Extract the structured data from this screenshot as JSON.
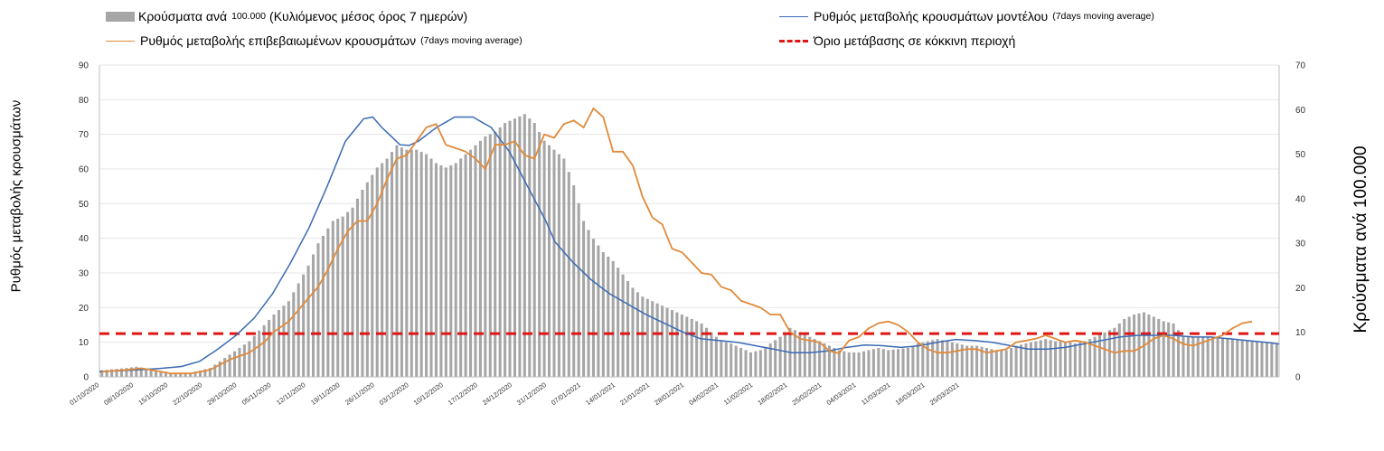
{
  "chart_data": {
    "type": "bar+line",
    "legend": {
      "bars": {
        "label": "Κρούσματα ανά",
        "small": "100.000",
        "suffix": "(Κυλιόμενος μέσος όρος 7 ημερών)"
      },
      "model": {
        "label": "Ρυθμός μεταβολής κρουσμάτων μοντέλου",
        "small": "(7days moving average)"
      },
      "confirmed": {
        "label": "Ρυθμός μεταβολής επιβεβαιωμένων κρουσμάτων",
        "small": "(7days moving average)"
      },
      "threshold": {
        "label": "Όριο μετάβασης σε κόκκινη περιοχή"
      }
    },
    "left_axis": {
      "title": "Ρυθμός μεταβολής κρουσμάτων",
      "min": 0,
      "max": 90,
      "ticks": [
        0,
        10,
        20,
        30,
        40,
        50,
        60,
        70,
        80,
        90
      ]
    },
    "right_axis": {
      "title": "Κρούσματα ανά 100.000",
      "min": 0,
      "max": 70,
      "ticks": [
        0,
        10,
        20,
        30,
        40,
        50,
        60,
        70
      ]
    },
    "x_tick_labels": [
      "01/10/2020",
      "08/10/2020",
      "15/10/2020",
      "22/10/2020",
      "29/10/2020",
      "05/11/2020",
      "12/11/2020",
      "19/11/2020",
      "26/11/2020",
      "03/12/2020",
      "10/12/2020",
      "17/12/2020",
      "24/12/2020",
      "31/12/2020",
      "07/01/2021",
      "14/01/2021",
      "21/01/2021",
      "28/01/2021",
      "04/02/2021",
      "11/02/2021",
      "18/02/2021",
      "25/02/2021",
      "04/03/2021",
      "11/03/2021",
      "18/03/2021",
      "25/03/2021"
    ],
    "threshold_value_left": 12.5,
    "bars_anchors": [
      [
        0,
        1.5
      ],
      [
        5,
        2
      ],
      [
        7,
        2.3
      ],
      [
        10,
        1.5
      ],
      [
        14,
        0.8
      ],
      [
        18,
        0.9
      ],
      [
        22,
        2
      ],
      [
        26,
        5
      ],
      [
        30,
        8
      ],
      [
        35,
        14
      ],
      [
        38,
        17
      ],
      [
        40,
        21
      ],
      [
        42,
        25
      ],
      [
        44,
        30
      ],
      [
        47,
        35
      ],
      [
        49,
        36
      ],
      [
        51,
        38
      ],
      [
        53,
        42
      ],
      [
        56,
        47
      ],
      [
        58,
        49
      ],
      [
        60,
        52
      ],
      [
        62,
        51
      ],
      [
        64,
        51
      ],
      [
        66,
        50
      ],
      [
        68,
        48
      ],
      [
        70,
        47
      ],
      [
        72,
        48
      ],
      [
        74,
        50
      ],
      [
        76,
        52
      ],
      [
        78,
        54
      ],
      [
        80,
        55
      ],
      [
        82,
        57
      ],
      [
        84,
        58
      ],
      [
        86,
        59
      ],
      [
        88,
        57
      ],
      [
        90,
        53
      ],
      [
        92,
        51
      ],
      [
        94,
        49
      ],
      [
        96,
        43
      ],
      [
        98,
        35
      ],
      [
        100,
        31
      ],
      [
        102,
        28
      ],
      [
        104,
        26
      ],
      [
        106,
        23
      ],
      [
        108,
        20
      ],
      [
        110,
        18
      ],
      [
        112,
        17
      ],
      [
        114,
        16
      ],
      [
        116,
        15
      ],
      [
        118,
        14
      ],
      [
        120,
        13
      ],
      [
        122,
        12
      ],
      [
        124,
        10
      ],
      [
        126,
        8
      ],
      [
        128,
        7.5
      ],
      [
        130,
        6.5
      ],
      [
        132,
        5.5
      ],
      [
        134,
        6
      ],
      [
        136,
        7.5
      ],
      [
        138,
        9
      ],
      [
        140,
        11
      ],
      [
        142,
        10
      ],
      [
        144,
        9
      ],
      [
        146,
        8
      ],
      [
        148,
        7
      ],
      [
        150,
        6
      ],
      [
        152,
        5.5
      ],
      [
        154,
        5.5
      ],
      [
        156,
        6
      ],
      [
        158,
        6.5
      ],
      [
        160,
        6
      ],
      [
        164,
        6.5
      ],
      [
        166,
        7.5
      ],
      [
        168,
        8
      ],
      [
        170,
        8.5
      ],
      [
        172,
        8
      ],
      [
        174,
        7.5
      ],
      [
        176,
        7
      ],
      [
        178,
        7
      ],
      [
        180,
        6.5
      ],
      [
        182,
        6
      ],
      [
        184,
        6
      ],
      [
        186,
        7
      ],
      [
        188,
        7.5
      ],
      [
        190,
        8
      ],
      [
        192,
        8.5
      ],
      [
        194,
        8
      ],
      [
        196,
        8
      ],
      [
        198,
        7.5
      ],
      [
        200,
        8
      ],
      [
        202,
        9
      ],
      [
        204,
        10
      ],
      [
        206,
        11
      ],
      [
        208,
        13
      ],
      [
        210,
        14
      ],
      [
        212,
        14.5
      ],
      [
        214,
        13.5
      ],
      [
        216,
        12.5
      ],
      [
        218,
        12
      ],
      [
        220,
        9
      ],
      [
        224,
        9
      ],
      [
        228,
        8.7
      ],
      [
        232,
        8.3
      ],
      [
        236,
        7.8
      ],
      [
        239,
        7.5
      ]
    ],
    "model_anchors": [
      [
        0,
        1.5
      ],
      [
        8,
        2
      ],
      [
        14,
        2.5
      ],
      [
        18,
        3
      ],
      [
        22,
        4.5
      ],
      [
        26,
        8
      ],
      [
        30,
        12
      ],
      [
        34,
        17
      ],
      [
        38,
        24
      ],
      [
        42,
        33
      ],
      [
        46,
        43
      ],
      [
        50,
        55
      ],
      [
        54,
        68
      ],
      [
        58,
        74.5
      ],
      [
        60,
        75
      ],
      [
        62,
        72
      ],
      [
        66,
        67
      ],
      [
        68,
        66.8
      ],
      [
        70,
        68
      ],
      [
        74,
        72
      ],
      [
        78,
        75
      ],
      [
        82,
        75
      ],
      [
        86,
        72
      ],
      [
        90,
        65
      ],
      [
        94,
        55
      ],
      [
        98,
        45
      ],
      [
        100,
        39
      ],
      [
        104,
        33
      ],
      [
        108,
        28
      ],
      [
        112,
        24
      ],
      [
        116,
        21
      ],
      [
        120,
        18
      ],
      [
        124,
        15.5
      ],
      [
        128,
        13
      ],
      [
        132,
        11
      ],
      [
        136,
        10.5
      ],
      [
        140,
        10
      ],
      [
        144,
        9
      ],
      [
        148,
        8
      ],
      [
        152,
        7
      ],
      [
        156,
        7
      ],
      [
        160,
        7.5
      ],
      [
        164,
        8.5
      ],
      [
        168,
        9.2
      ],
      [
        172,
        9
      ],
      [
        176,
        8.5
      ],
      [
        180,
        9
      ],
      [
        184,
        10
      ],
      [
        188,
        10.8
      ],
      [
        192,
        10.5
      ],
      [
        196,
        10
      ],
      [
        200,
        9
      ],
      [
        204,
        8
      ],
      [
        208,
        8
      ],
      [
        212,
        8.5
      ],
      [
        216,
        9.5
      ],
      [
        220,
        10.5
      ],
      [
        224,
        11.5
      ],
      [
        228,
        12
      ],
      [
        232,
        12
      ],
      [
        236,
        12
      ],
      [
        240,
        11.5
      ],
      [
        244,
        11.5
      ],
      [
        248,
        11
      ],
      [
        252,
        10.5
      ],
      [
        256,
        10
      ],
      [
        259,
        9.5
      ]
    ],
    "confirmed_anchors": [
      [
        0,
        1.5
      ],
      [
        5,
        2
      ],
      [
        8,
        2.5
      ],
      [
        10,
        2
      ],
      [
        14,
        1
      ],
      [
        18,
        1
      ],
      [
        22,
        2
      ],
      [
        26,
        5
      ],
      [
        30,
        7
      ],
      [
        33,
        10
      ],
      [
        35,
        13
      ],
      [
        38,
        16
      ],
      [
        41,
        21
      ],
      [
        44,
        26
      ],
      [
        46,
        31
      ],
      [
        48,
        37
      ],
      [
        50,
        42
      ],
      [
        52,
        45
      ],
      [
        54,
        45
      ],
      [
        56,
        50
      ],
      [
        58,
        57
      ],
      [
        60,
        63
      ],
      [
        62,
        64
      ],
      [
        64,
        68
      ],
      [
        66,
        72
      ],
      [
        68,
        73
      ],
      [
        70,
        67
      ],
      [
        72,
        66
      ],
      [
        74,
        65
      ],
      [
        76,
        63
      ],
      [
        78,
        60
      ],
      [
        80,
        67
      ],
      [
        82,
        67
      ],
      [
        84,
        68
      ],
      [
        86,
        64
      ],
      [
        88,
        63
      ],
      [
        90,
        70
      ],
      [
        92,
        69
      ],
      [
        94,
        73
      ],
      [
        96,
        74
      ],
      [
        98,
        72
      ],
      [
        100,
        77.5
      ],
      [
        102,
        75
      ],
      [
        104,
        65
      ],
      [
        106,
        65
      ],
      [
        108,
        61
      ],
      [
        110,
        52
      ],
      [
        112,
        46
      ],
      [
        114,
        44
      ],
      [
        116,
        37
      ],
      [
        118,
        36
      ],
      [
        120,
        33
      ],
      [
        122,
        30
      ],
      [
        124,
        29.5
      ],
      [
        126,
        26
      ],
      [
        128,
        25
      ],
      [
        130,
        22
      ],
      [
        132,
        21
      ],
      [
        134,
        20
      ],
      [
        136,
        18
      ],
      [
        138,
        18
      ],
      [
        140,
        13
      ],
      [
        142,
        11
      ],
      [
        144,
        10.5
      ],
      [
        146,
        10
      ],
      [
        148,
        7.5
      ],
      [
        150,
        6.8
      ],
      [
        152,
        10.5
      ],
      [
        154,
        11.5
      ],
      [
        156,
        14
      ],
      [
        158,
        15.5
      ],
      [
        160,
        16
      ],
      [
        162,
        15
      ],
      [
        164,
        13
      ],
      [
        166,
        10
      ],
      [
        168,
        8
      ],
      [
        170,
        7
      ],
      [
        172,
        7
      ],
      [
        174,
        7.5
      ],
      [
        176,
        8
      ],
      [
        178,
        8
      ],
      [
        180,
        7
      ],
      [
        182,
        7.5
      ],
      [
        184,
        8
      ],
      [
        186,
        10
      ],
      [
        188,
        10.5
      ],
      [
        190,
        11
      ],
      [
        192,
        12
      ],
      [
        194,
        11
      ],
      [
        196,
        10
      ],
      [
        198,
        10.5
      ],
      [
        200,
        10
      ],
      [
        202,
        9
      ],
      [
        204,
        8
      ],
      [
        206,
        7
      ],
      [
        208,
        7.5
      ],
      [
        210,
        7.5
      ],
      [
        212,
        9
      ],
      [
        214,
        11
      ],
      [
        216,
        12
      ],
      [
        218,
        11
      ],
      [
        220,
        9.5
      ],
      [
        222,
        9
      ],
      [
        224,
        10
      ],
      [
        226,
        11
      ],
      [
        228,
        12
      ],
      [
        230,
        14
      ],
      [
        232,
        15.5
      ],
      [
        234,
        16
      ]
    ]
  }
}
